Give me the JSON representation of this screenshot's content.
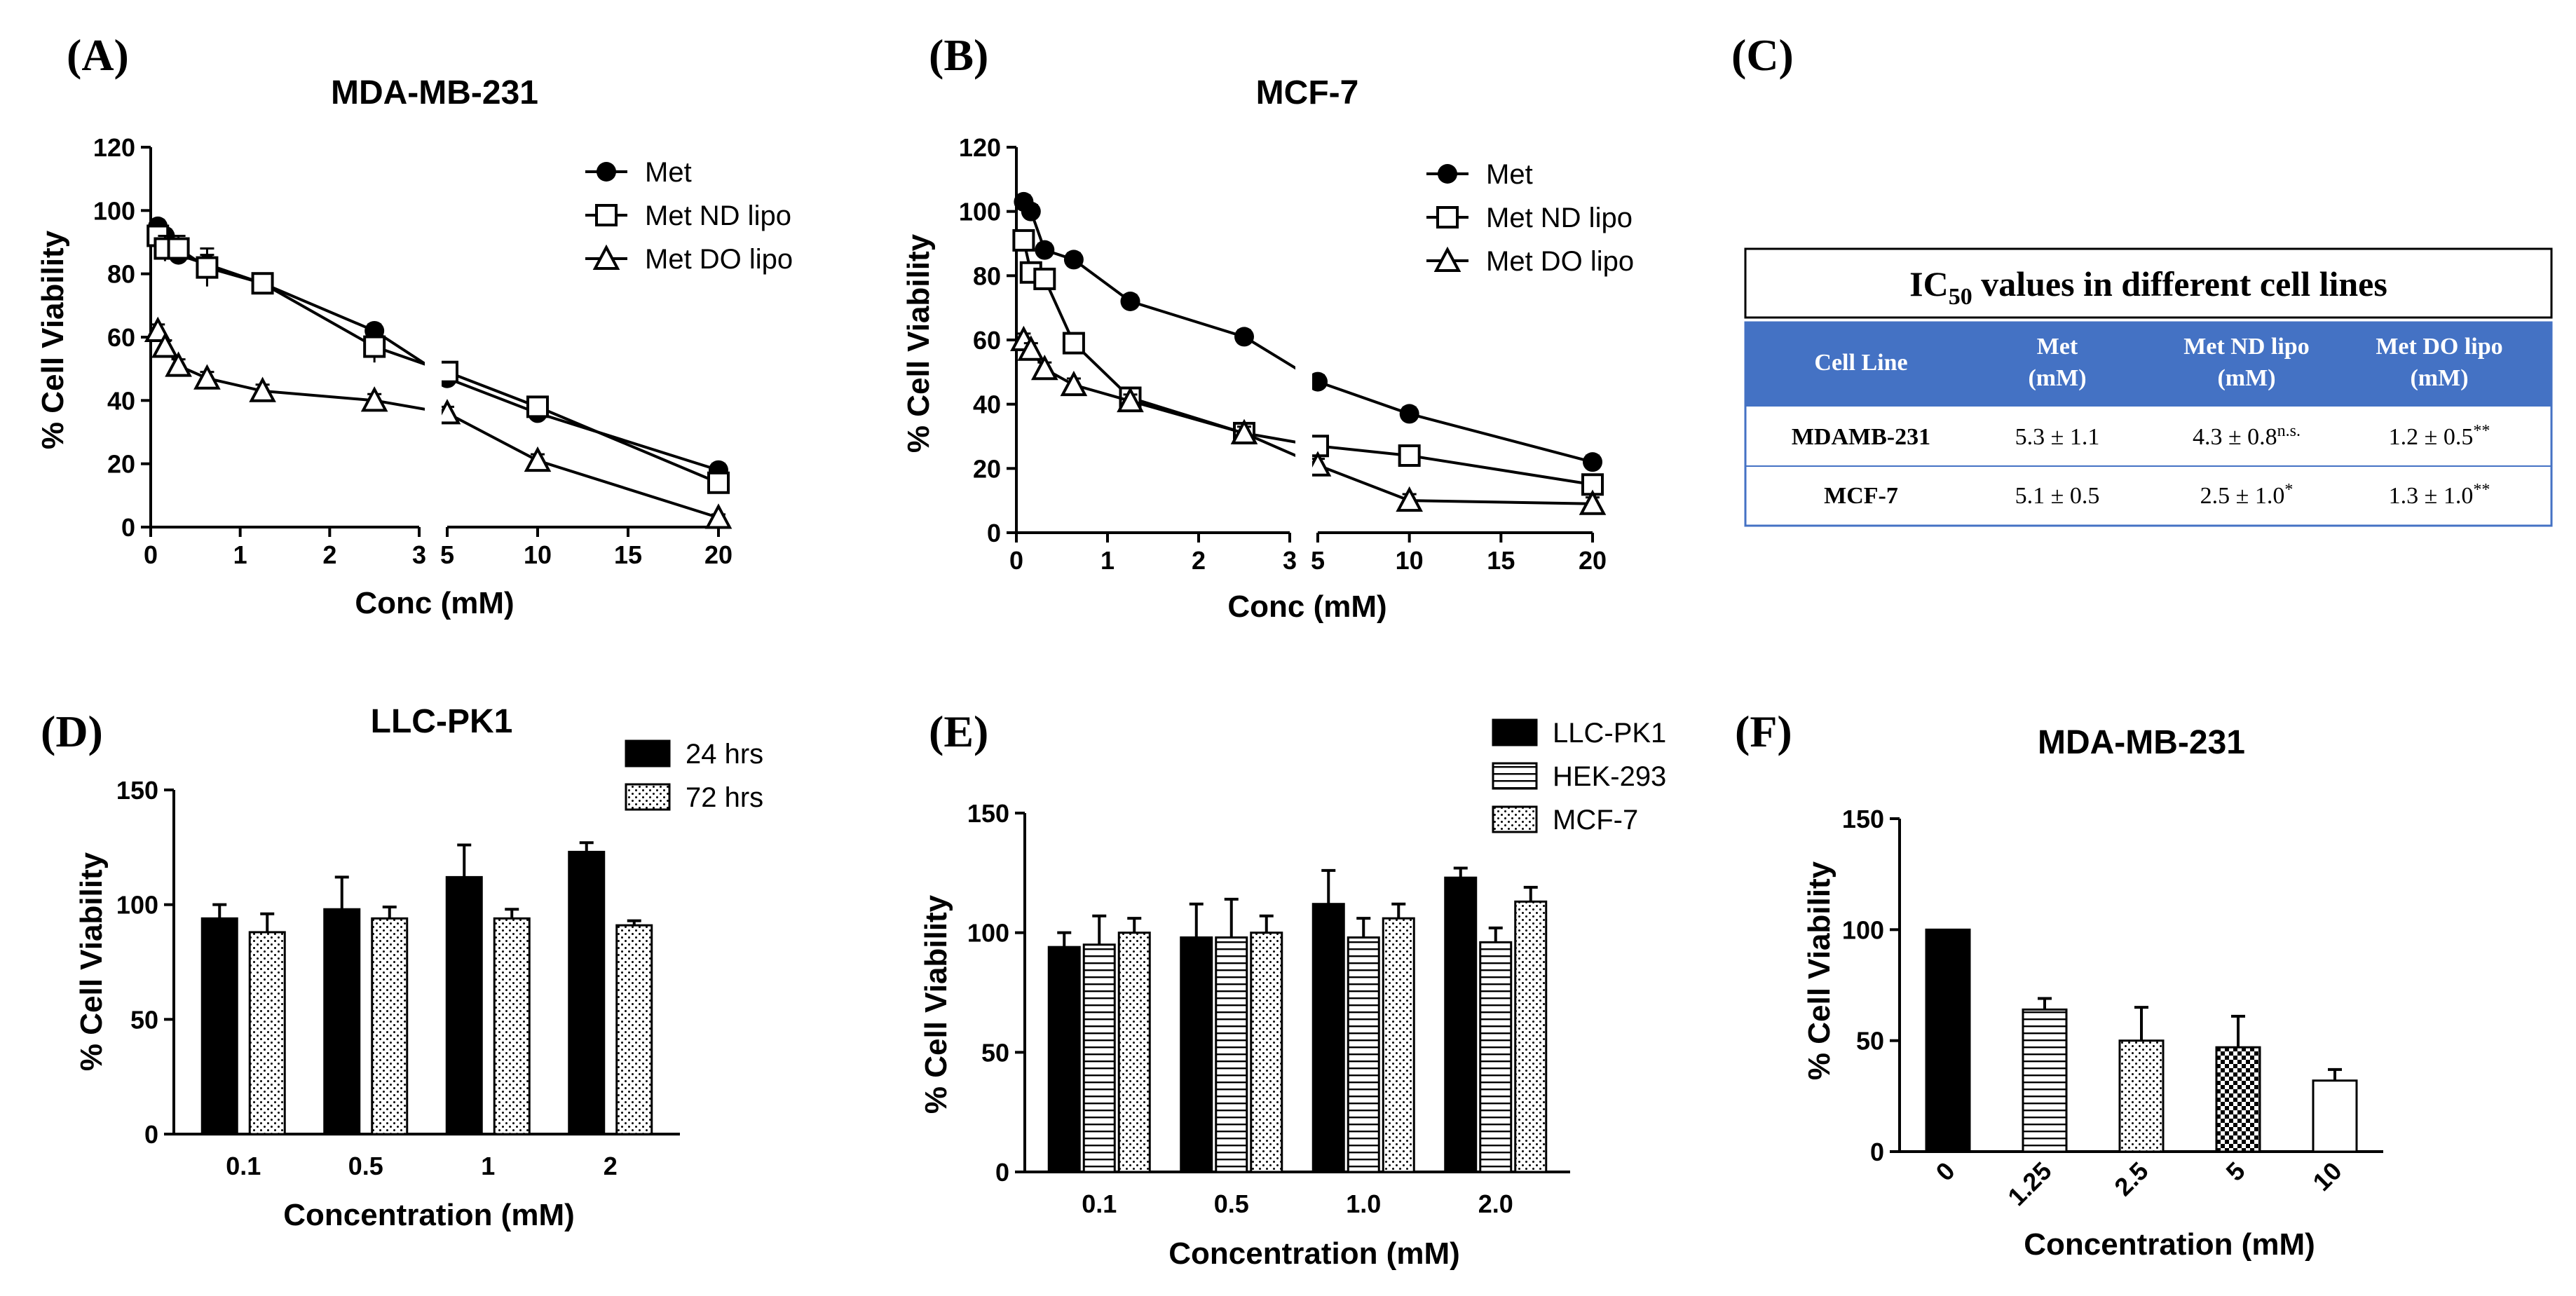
{
  "panels": {
    "A": {
      "label": "(A)"
    },
    "B": {
      "label": "(B)"
    },
    "C": {
      "label": "(C)"
    },
    "D": {
      "label": "(D)"
    },
    "E": {
      "label": "(E)"
    },
    "F": {
      "label": "(F)"
    }
  },
  "colors": {
    "bar_fill_24": "#000000",
    "table_header_bg": "#4472C4",
    "table_header_text": "#ffffff"
  },
  "chart_data": [
    {
      "panel": "A",
      "type": "line",
      "title": "MDA-MB-231",
      "xlabel": "Conc (mM)",
      "ylabel": "% Cell Viability",
      "ylim": [
        0,
        120
      ],
      "yticks": [
        "0",
        "20",
        "40",
        "60",
        "80",
        "100",
        "120"
      ],
      "xticks_left": [
        "0",
        "1",
        "2",
        "3"
      ],
      "xticks_right": [
        "5",
        "10",
        "15",
        "20"
      ],
      "x_break": true,
      "legend_position": "top-right",
      "series": [
        {
          "name": "Met",
          "marker": "filled-circle",
          "x": [
            0.08,
            0.16,
            0.31,
            0.63,
            1.25,
            2.5,
            5,
            10,
            20
          ],
          "y": [
            95,
            92,
            86,
            83,
            77,
            62,
            47,
            36,
            18
          ],
          "err": [
            2,
            2,
            3,
            3,
            2,
            2,
            2,
            2,
            2
          ]
        },
        {
          "name": "Met ND lipo",
          "marker": "open-square",
          "x": [
            0.08,
            0.16,
            0.31,
            0.63,
            1.25,
            2.5,
            5,
            10,
            20
          ],
          "y": [
            92,
            88,
            88,
            82,
            77,
            57,
            49,
            38,
            14
          ],
          "err": [
            3,
            4,
            4,
            6,
            3,
            5,
            2,
            2,
            3
          ]
        },
        {
          "name": "Met DO lipo",
          "marker": "open-triangle",
          "x": [
            0.08,
            0.16,
            0.31,
            0.63,
            1.25,
            2.5,
            5,
            10,
            20
          ],
          "y": [
            62,
            57,
            51,
            47,
            43,
            40,
            36,
            21,
            3
          ],
          "err": [
            2,
            2,
            2,
            2,
            2,
            2,
            2,
            2,
            1
          ]
        }
      ]
    },
    {
      "panel": "B",
      "type": "line",
      "title": "MCF-7",
      "xlabel": "Conc (mM)",
      "ylabel": "% Cell Viability",
      "ylim": [
        0,
        120
      ],
      "yticks": [
        "0",
        "20",
        "40",
        "60",
        "80",
        "100",
        "120"
      ],
      "xticks_left": [
        "0",
        "1",
        "2",
        "3"
      ],
      "xticks_right": [
        "5",
        "10",
        "15",
        "20"
      ],
      "x_break": true,
      "legend_position": "top-right",
      "series": [
        {
          "name": "Met",
          "marker": "filled-circle",
          "x": [
            0.08,
            0.16,
            0.31,
            0.63,
            1.25,
            2.5,
            5,
            10,
            20
          ],
          "y": [
            103,
            100,
            88,
            85,
            72,
            61,
            47,
            37,
            22
          ],
          "err": [
            2,
            2,
            2,
            2,
            2,
            2,
            2,
            2,
            2
          ]
        },
        {
          "name": "Met ND lipo",
          "marker": "open-square",
          "x": [
            0.08,
            0.16,
            0.31,
            0.63,
            1.25,
            2.5,
            5,
            10,
            20
          ],
          "y": [
            91,
            81,
            79,
            59,
            42,
            31,
            27,
            24,
            15
          ],
          "err": [
            2,
            2,
            2,
            2,
            2,
            2,
            2,
            2,
            2
          ]
        },
        {
          "name": "Met DO lipo",
          "marker": "open-triangle",
          "x": [
            0.08,
            0.16,
            0.31,
            0.63,
            1.25,
            2.5,
            5,
            10,
            20
          ],
          "y": [
            60,
            57,
            51,
            46,
            41,
            31,
            21,
            10,
            9
          ],
          "err": [
            2,
            2,
            2,
            2,
            2,
            2,
            2,
            2,
            2
          ]
        }
      ]
    },
    {
      "panel": "C",
      "type": "table",
      "title_main": "IC",
      "title_sub": "50",
      "title_rest": " values in different cell lines",
      "headers": [
        [
          "Cell Line"
        ],
        [
          "Met",
          "(mM)"
        ],
        [
          "Met ND lipo",
          "(mM)"
        ],
        [
          "Met DO lipo",
          "(mM)"
        ]
      ],
      "rows": [
        {
          "cells": [
            {
              "text": "MDAMB-231",
              "sup": ""
            },
            {
              "text": "5.3 ± 1.1",
              "sup": ""
            },
            {
              "text": "4.3 ± 0.8",
              "sup": "n.s."
            },
            {
              "text": "1.2 ± 0.5",
              "sup": "**"
            }
          ]
        },
        {
          "cells": [
            {
              "text": "MCF-7",
              "sup": ""
            },
            {
              "text": "5.1 ± 0.5",
              "sup": ""
            },
            {
              "text": "2.5 ± 1.0",
              "sup": "*"
            },
            {
              "text": "1.3 ± 1.0",
              "sup": "**"
            }
          ]
        }
      ]
    },
    {
      "panel": "D",
      "type": "bar",
      "title": "LLC-PK1",
      "xlabel": "Concentration (mM)",
      "ylabel": "% Cell Viability",
      "ylim": [
        0,
        150
      ],
      "yticks": [
        "0",
        "50",
        "100",
        "150"
      ],
      "categories": [
        "0.1",
        "0.5",
        "1",
        "2"
      ],
      "legend_position": "top-right",
      "series": [
        {
          "name": "24 hrs",
          "pattern": "solid",
          "values": [
            94,
            98,
            112,
            123
          ],
          "err": [
            6,
            14,
            14,
            4
          ]
        },
        {
          "name": "72 hrs",
          "pattern": "dots",
          "values": [
            88,
            94,
            94,
            91
          ],
          "err": [
            8,
            5,
            4,
            2
          ]
        }
      ]
    },
    {
      "panel": "E",
      "type": "bar",
      "title": "",
      "xlabel": "Concentration (mM)",
      "ylabel": "% Cell Viability",
      "ylim": [
        0,
        150
      ],
      "yticks": [
        "0",
        "50",
        "100",
        "150"
      ],
      "categories": [
        "0.1",
        "0.5",
        "1.0",
        "2.0"
      ],
      "legend_position": "top-right",
      "series": [
        {
          "name": "LLC-PK1",
          "pattern": "solid",
          "values": [
            94,
            98,
            112,
            123
          ],
          "err": [
            6,
            14,
            14,
            4
          ]
        },
        {
          "name": "HEK-293",
          "pattern": "hlines",
          "values": [
            95,
            98,
            98,
            96
          ],
          "err": [
            12,
            16,
            8,
            6
          ]
        },
        {
          "name": "MCF-7",
          "pattern": "dots",
          "values": [
            100,
            100,
            106,
            113
          ],
          "err": [
            6,
            7,
            6,
            6
          ]
        }
      ]
    },
    {
      "panel": "F",
      "type": "bar",
      "title": "MDA-MB-231",
      "xlabel": "Concentration (mM)",
      "ylabel": "% Cell Viability",
      "ylim": [
        0,
        150
      ],
      "yticks": [
        "0",
        "50",
        "100",
        "150"
      ],
      "categories": [
        "0",
        "1.25",
        "2.5",
        "5",
        "10"
      ],
      "patterns": [
        "solid",
        "hlines",
        "dots",
        "checker",
        "white"
      ],
      "values": [
        100,
        64,
        50,
        47,
        32
      ],
      "err": [
        0,
        5,
        15,
        14,
        5
      ]
    }
  ]
}
